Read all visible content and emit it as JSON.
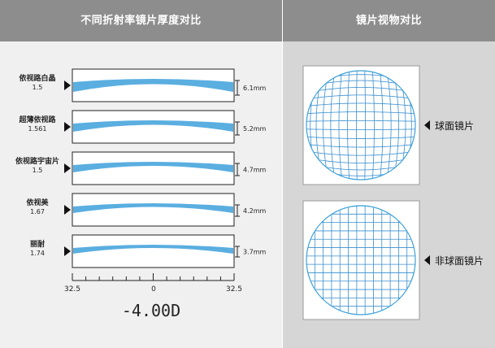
{
  "header": {
    "left_title": "不同折射率镜片厚度对比",
    "right_title": "镜片视物对比"
  },
  "lenses": [
    {
      "name": "依视路白晶",
      "index": "1.5",
      "thickness_label": "6.1mm"
    },
    {
      "name": "超薄依视路",
      "index": "1.561",
      "thickness_label": "5.2mm"
    },
    {
      "name": "依视路宇宙片",
      "index": "1.5",
      "thickness_label": "4.7mm"
    },
    {
      "name": "依视美",
      "index": "1.67",
      "thickness_label": "4.2mm"
    },
    {
      "name": "丽耐",
      "index": "1.74",
      "thickness_label": "3.7mm"
    }
  ],
  "scale": {
    "left_label": "32.5",
    "center_label": "0",
    "right_label": "32.5"
  },
  "power_label": "-4.00D",
  "comparison": {
    "spherical_label": "球面镜片",
    "aspherical_label": "非球面镜片"
  },
  "colors": {
    "lens_fill": "#5aaee0",
    "grid_line": "#3a8fd0",
    "circle_stroke": "#3aa0d8",
    "header_bg": "#8d8d8d"
  }
}
